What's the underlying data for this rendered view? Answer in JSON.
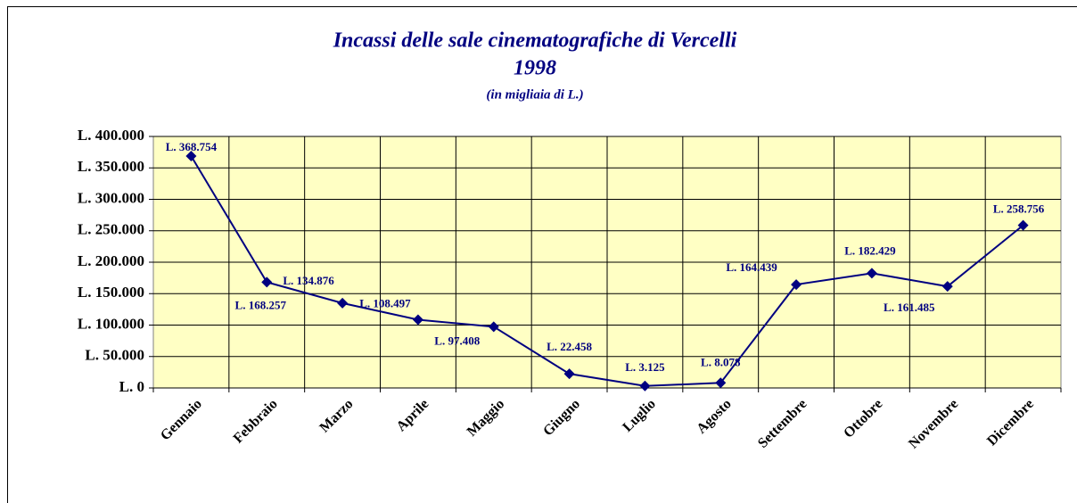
{
  "chart_data": {
    "type": "line",
    "title": "Incassi delle sale cinematografiche di Vercelli",
    "subtitle": "1998",
    "note": "(in migliaia di L.)",
    "categories": [
      "Gennaio",
      "Febbraio",
      "Marzo",
      "Aprile",
      "Maggio",
      "Giugno",
      "Luglio",
      "Agosto",
      "Settembre",
      "Ottobre",
      "Novembre",
      "Dicembre"
    ],
    "values": [
      368754,
      168257,
      134876,
      108497,
      97408,
      22458,
      3125,
      8078,
      164439,
      182429,
      161485,
      258756
    ],
    "value_labels": [
      "L. 368.754",
      "L. 168.257",
      "L. 134.876",
      "L. 108.497",
      "L. 97.408",
      "L. 22.458",
      "L. 3.125",
      "L. 8.078",
      "L. 164.439",
      "L. 182.429",
      "L. 161.485",
      "L. 258.756"
    ],
    "color": "#000080",
    "ylim": [
      0,
      400000
    ],
    "yticks": [
      {
        "value": 0,
        "label": "L. 0"
      },
      {
        "value": 50000,
        "label": "L. 50.000"
      },
      {
        "value": 100000,
        "label": "L. 100.000"
      },
      {
        "value": 150000,
        "label": "L. 150.000"
      },
      {
        "value": 200000,
        "label": "L. 200.000"
      },
      {
        "value": 250000,
        "label": "L. 250.000"
      },
      {
        "value": 300000,
        "label": "L. 300.000"
      },
      {
        "value": 350000,
        "label": "L. 350.000"
      },
      {
        "value": 400000,
        "label": "L. 400.000"
      }
    ],
    "grid": true
  }
}
